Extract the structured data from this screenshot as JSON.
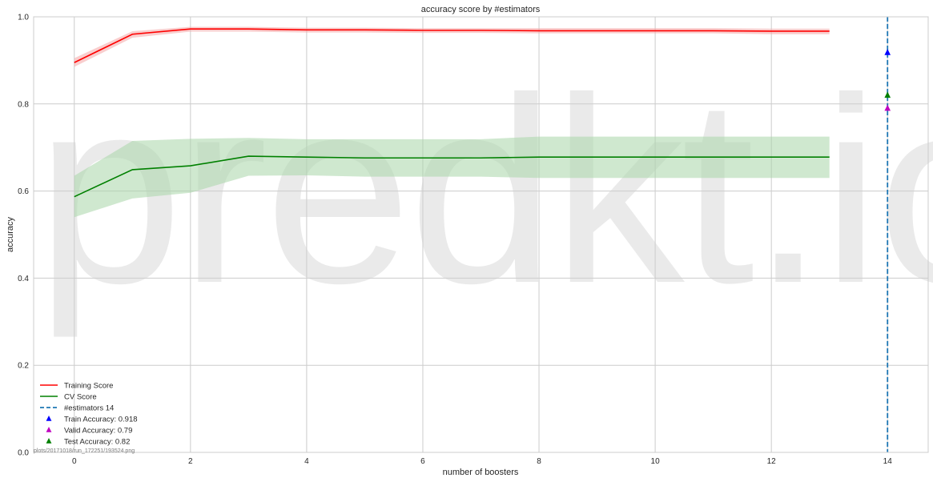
{
  "watermark": "predkt.io",
  "footnote": "plots/20171018/run_172251/193524.png",
  "chart_data": {
    "type": "line",
    "title": "accuracy score by #estimators",
    "xlabel": "number of boosters",
    "ylabel": "accuracy",
    "xlim": [
      -0.7,
      14.7
    ],
    "ylim": [
      0.0,
      1.0
    ],
    "xticks": [
      0,
      2,
      4,
      6,
      8,
      10,
      12,
      14
    ],
    "yticks": [
      0.0,
      0.2,
      0.4,
      0.6,
      0.8,
      1.0
    ],
    "ytick_labels": [
      "0.0",
      "0.2",
      "0.4",
      "0.6",
      "0.8",
      "1.0"
    ],
    "grid": true,
    "legend_position": "lower-left",
    "x": [
      0,
      1,
      2,
      3,
      4,
      5,
      6,
      7,
      8,
      9,
      10,
      11,
      12,
      13
    ],
    "series": [
      {
        "name": "Training Score",
        "color": "#ff0000",
        "values": [
          0.895,
          0.96,
          0.972,
          0.972,
          0.97,
          0.97,
          0.969,
          0.969,
          0.968,
          0.968,
          0.968,
          0.968,
          0.967,
          0.967
        ],
        "band_upper": [
          0.905,
          0.967,
          0.977,
          0.977,
          0.975,
          0.975,
          0.974,
          0.974,
          0.974,
          0.974,
          0.974,
          0.974,
          0.973,
          0.973
        ],
        "band_lower": [
          0.885,
          0.952,
          0.966,
          0.966,
          0.964,
          0.964,
          0.963,
          0.963,
          0.962,
          0.962,
          0.962,
          0.962,
          0.96,
          0.96
        ],
        "band_color": "#f4a6a6"
      },
      {
        "name": "CV Score",
        "color": "#008000",
        "values": [
          0.587,
          0.649,
          0.658,
          0.68,
          0.678,
          0.676,
          0.676,
          0.676,
          0.678,
          0.678,
          0.678,
          0.678,
          0.678,
          0.678
        ],
        "band_upper": [
          0.635,
          0.715,
          0.72,
          0.722,
          0.719,
          0.719,
          0.719,
          0.719,
          0.725,
          0.725,
          0.725,
          0.725,
          0.725,
          0.725
        ],
        "band_lower": [
          0.54,
          0.583,
          0.596,
          0.635,
          0.636,
          0.633,
          0.633,
          0.633,
          0.63,
          0.63,
          0.63,
          0.63,
          0.63,
          0.63
        ],
        "band_color": "#a8d5a8"
      }
    ],
    "vline": {
      "name": "#estimators 14",
      "x": 14,
      "color": "#1f77b4",
      "style": "dashed"
    },
    "markers": [
      {
        "name": "Train Accuracy: 0.918",
        "x": 14,
        "y": 0.918,
        "color": "#0000ff",
        "shape": "triangle"
      },
      {
        "name": "Valid Accuracy: 0.79",
        "x": 14,
        "y": 0.79,
        "color": "#bf00bf",
        "shape": "triangle"
      },
      {
        "name": "Test Accuracy: 0.82",
        "x": 14,
        "y": 0.82,
        "color": "#007f00",
        "shape": "triangle"
      }
    ]
  }
}
